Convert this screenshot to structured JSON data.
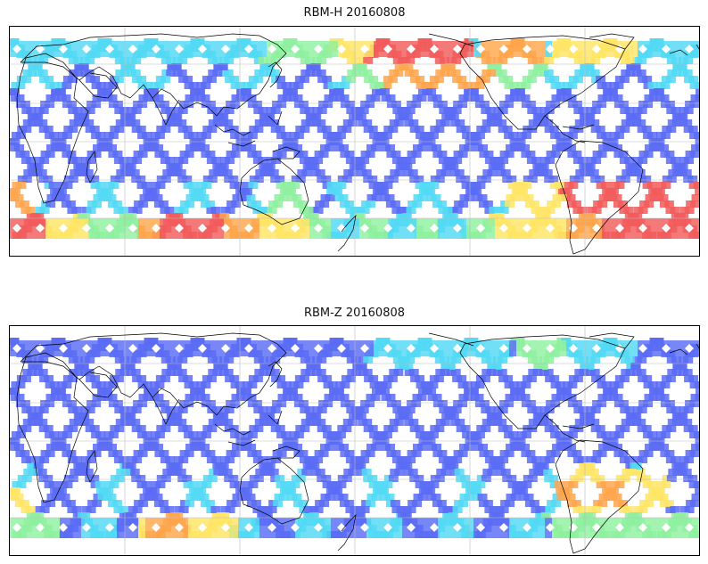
{
  "panels": [
    {
      "title": "RBM-H 20160808",
      "variant": "H"
    },
    {
      "title": "RBM-Z 20160808",
      "variant": "Z"
    }
  ],
  "colors": {
    "low": "#5a6cf5",
    "cyan": "#52d9f5",
    "green": "#8ff0a0",
    "yellow": "#ffe566",
    "orange": "#ffa64d",
    "red": "#f25c5c",
    "coast": "#000000",
    "grid": "#bbbbbb"
  }
}
